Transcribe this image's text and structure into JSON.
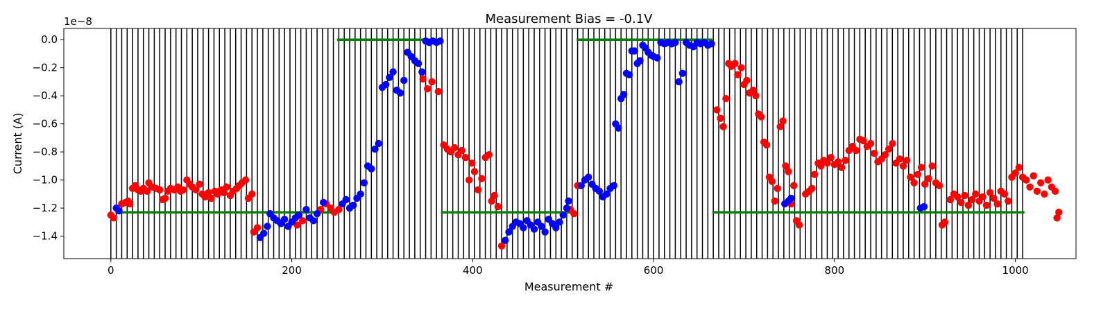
{
  "chart_data": {
    "type": "scatter",
    "title": "Measurement Bias = -0.1V",
    "xlabel": "Measurement #",
    "ylabel": "Current (A)",
    "y_offset_text": "1e−8",
    "y_scale_factor": 1e-08,
    "xlim": [
      -52,
      1067
    ],
    "ylim": [
      -1.56,
      0.08
    ],
    "x_ticks": [
      0,
      200,
      400,
      600,
      800,
      1000
    ],
    "x_tick_labels": [
      "0",
      "200",
      "400",
      "600",
      "800",
      "1000"
    ],
    "y_ticks": [
      0.0,
      -0.2,
      -0.4,
      -0.6,
      -0.8,
      -1.0,
      -1.2,
      -1.4
    ],
    "y_tick_labels": [
      "0.0",
      "−0.2",
      "−0.4",
      "−0.6",
      "−0.8",
      "−1.0",
      "−1.2",
      "−1.4"
    ],
    "grid": false,
    "colors": {
      "red": "#ff0000",
      "blue": "#0000ff",
      "green": "#007f00",
      "lines": "#000000"
    },
    "vertical_lines": {
      "start": 0,
      "end": 1010,
      "step": 6
    },
    "reference_lines": [
      {
        "x": [
          5,
          250
        ],
        "y": -1.23
      },
      {
        "x": [
          250,
          365
        ],
        "y": 0.0
      },
      {
        "x": [
          365,
          515
        ],
        "y": -1.23
      },
      {
        "x": [
          515,
          665
        ],
        "y": 0.0
      },
      {
        "x": [
          665,
          1010
        ],
        "y": -1.23
      }
    ],
    "series": [
      {
        "color": "red",
        "points": [
          [
            0,
            -1.25
          ],
          [
            3,
            -1.27
          ],
          [
            12,
            -1.17
          ],
          [
            16,
            -1.16
          ],
          [
            19,
            -1.15
          ],
          [
            21,
            -1.17
          ],
          [
            24,
            -1.06
          ],
          [
            27,
            -1.04
          ],
          [
            30,
            -1.07
          ],
          [
            33,
            -1.08
          ],
          [
            36,
            -1.06
          ],
          [
            40,
            -1.08
          ],
          [
            42,
            -1.02
          ],
          [
            46,
            -1.05
          ],
          [
            50,
            -1.06
          ],
          [
            54,
            -1.07
          ],
          [
            57,
            -1.14
          ],
          [
            60,
            -1.13
          ],
          [
            63,
            -1.08
          ],
          [
            66,
            -1.06
          ],
          [
            70,
            -1.07
          ],
          [
            74,
            -1.05
          ],
          [
            77,
            -1.08
          ],
          [
            80,
            -1.07
          ],
          [
            84,
            -1.0
          ],
          [
            87,
            -1.03
          ],
          [
            90,
            -1.05
          ],
          [
            94,
            -1.07
          ],
          [
            98,
            -1.03
          ],
          [
            101,
            -1.1
          ],
          [
            104,
            -1.12
          ],
          [
            108,
            -1.09
          ],
          [
            111,
            -1.13
          ],
          [
            115,
            -1.08
          ],
          [
            118,
            -1.1
          ],
          [
            122,
            -1.07
          ],
          [
            125,
            -1.09
          ],
          [
            128,
            -1.05
          ],
          [
            132,
            -1.11
          ],
          [
            135,
            -1.08
          ],
          [
            139,
            -1.06
          ],
          [
            142,
            -1.04
          ],
          [
            145,
            -1.02
          ],
          [
            149,
            -1.0
          ],
          [
            152,
            -1.13
          ],
          [
            156,
            -1.1
          ],
          [
            158,
            -1.37
          ],
          [
            162,
            -1.34
          ],
          [
            206,
            -1.32
          ],
          [
            212,
            -1.29
          ],
          [
            232,
            -1.21
          ],
          [
            238,
            -1.17
          ],
          [
            243,
            -1.2
          ],
          [
            247,
            -1.23
          ],
          [
            252,
            -1.21
          ],
          [
            345,
            -0.28
          ],
          [
            350,
            -0.35
          ],
          [
            355,
            -0.3
          ],
          [
            362,
            -0.37
          ],
          [
            368,
            -0.75
          ],
          [
            372,
            -0.78
          ],
          [
            376,
            -0.8
          ],
          [
            380,
            -0.77
          ],
          [
            384,
            -0.82
          ],
          [
            388,
            -0.79
          ],
          [
            392,
            -0.84
          ],
          [
            396,
            -1.0
          ],
          [
            399,
            -0.88
          ],
          [
            402,
            -0.94
          ],
          [
            406,
            -1.07
          ],
          [
            410,
            -0.99
          ],
          [
            414,
            -0.84
          ],
          [
            418,
            -0.82
          ],
          [
            421,
            -1.15
          ],
          [
            424,
            -1.11
          ],
          [
            428,
            -1.19
          ],
          [
            432,
            -1.47
          ],
          [
            508,
            -1.21
          ],
          [
            512,
            -1.24
          ],
          [
            516,
            -1.04
          ],
          [
            670,
            -0.5
          ],
          [
            674,
            -0.56
          ],
          [
            677,
            -0.62
          ],
          [
            680,
            -0.42
          ],
          [
            683,
            -0.17
          ],
          [
            686,
            -0.19
          ],
          [
            690,
            -0.17
          ],
          [
            693,
            -0.25
          ],
          [
            697,
            -0.2
          ],
          [
            700,
            -0.32
          ],
          [
            703,
            -0.29
          ],
          [
            706,
            -0.38
          ],
          [
            710,
            -0.36
          ],
          [
            713,
            -0.4
          ],
          [
            716,
            -0.53
          ],
          [
            719,
            -0.55
          ],
          [
            722,
            -0.73
          ],
          [
            725,
            -0.75
          ],
          [
            728,
            -0.98
          ],
          [
            731,
            -1.01
          ],
          [
            734,
            -1.15
          ],
          [
            737,
            -1.06
          ],
          [
            740,
            -0.62
          ],
          [
            743,
            -0.58
          ],
          [
            746,
            -0.9
          ],
          [
            749,
            -0.94
          ],
          [
            752,
            -1.17
          ],
          [
            755,
            -1.04
          ],
          [
            758,
            -1.29
          ],
          [
            761,
            -1.32
          ],
          [
            768,
            -1.1
          ],
          [
            772,
            -1.08
          ],
          [
            775,
            -1.06
          ],
          [
            778,
            -0.96
          ],
          [
            782,
            -0.88
          ],
          [
            785,
            -0.9
          ],
          [
            788,
            -0.86
          ],
          [
            792,
            -0.88
          ],
          [
            796,
            -0.84
          ],
          [
            800,
            -0.89
          ],
          [
            804,
            -0.87
          ],
          [
            808,
            -0.91
          ],
          [
            812,
            -0.86
          ],
          [
            816,
            -0.79
          ],
          [
            820,
            -0.76
          ],
          [
            824,
            -0.79
          ],
          [
            828,
            -0.71
          ],
          [
            832,
            -0.72
          ],
          [
            836,
            -0.76
          ],
          [
            840,
            -0.74
          ],
          [
            844,
            -0.81
          ],
          [
            848,
            -0.87
          ],
          [
            852,
            -0.85
          ],
          [
            856,
            -0.82
          ],
          [
            860,
            -0.78
          ],
          [
            864,
            -0.74
          ],
          [
            868,
            -0.88
          ],
          [
            872,
            -0.85
          ],
          [
            876,
            -0.9
          ],
          [
            880,
            -0.86
          ],
          [
            884,
            -0.98
          ],
          [
            888,
            -1.02
          ],
          [
            892,
            -0.96
          ],
          [
            896,
            -0.91
          ],
          [
            900,
            -1.03
          ],
          [
            904,
            -0.99
          ],
          [
            908,
            -0.9
          ],
          [
            912,
            -1.02
          ],
          [
            916,
            -1.04
          ],
          [
            919,
            -1.32
          ],
          [
            922,
            -1.3
          ],
          [
            928,
            -1.14
          ],
          [
            932,
            -1.1
          ],
          [
            936,
            -1.12
          ],
          [
            940,
            -1.16
          ],
          [
            944,
            -1.11
          ],
          [
            948,
            -1.18
          ],
          [
            952,
            -1.14
          ],
          [
            956,
            -1.1
          ],
          [
            960,
            -1.15
          ],
          [
            964,
            -1.12
          ],
          [
            968,
            -1.18
          ],
          [
            972,
            -1.09
          ],
          [
            976,
            -1.13
          ],
          [
            980,
            -1.17
          ],
          [
            984,
            -1.08
          ],
          [
            988,
            -1.1
          ],
          [
            992,
            -1.15
          ],
          [
            996,
            -0.98
          ],
          [
            1000,
            -0.95
          ],
          [
            1004,
            -0.91
          ],
          [
            1008,
            -0.98
          ],
          [
            1012,
            -1.0
          ],
          [
            1016,
            -1.05
          ],
          [
            1020,
            -0.97
          ],
          [
            1024,
            -1.08
          ],
          [
            1028,
            -1.02
          ],
          [
            1032,
            -1.1
          ],
          [
            1036,
            -1.0
          ],
          [
            1040,
            -1.05
          ],
          [
            1044,
            -1.08
          ],
          [
            1046,
            -1.27
          ],
          [
            1048,
            -1.23
          ]
        ]
      },
      {
        "color": "blue",
        "points": [
          [
            6,
            -1.2
          ],
          [
            9,
            -1.22
          ],
          [
            165,
            -1.41
          ],
          [
            169,
            -1.38
          ],
          [
            173,
            -1.33
          ],
          [
            176,
            -1.24
          ],
          [
            180,
            -1.27
          ],
          [
            184,
            -1.29
          ],
          [
            188,
            -1.31
          ],
          [
            192,
            -1.28
          ],
          [
            196,
            -1.33
          ],
          [
            200,
            -1.3
          ],
          [
            204,
            -1.27
          ],
          [
            208,
            -1.25
          ],
          [
            216,
            -1.21
          ],
          [
            220,
            -1.27
          ],
          [
            224,
            -1.29
          ],
          [
            228,
            -1.24
          ],
          [
            235,
            -1.16
          ],
          [
            256,
            -1.17
          ],
          [
            260,
            -1.14
          ],
          [
            264,
            -1.2
          ],
          [
            268,
            -1.18
          ],
          [
            272,
            -1.13
          ],
          [
            276,
            -1.1
          ],
          [
            280,
            -1.02
          ],
          [
            284,
            -0.9
          ],
          [
            288,
            -0.92
          ],
          [
            292,
            -0.78
          ],
          [
            296,
            -0.74
          ],
          [
            300,
            -0.34
          ],
          [
            304,
            -0.32
          ],
          [
            308,
            -0.27
          ],
          [
            312,
            -0.23
          ],
          [
            316,
            -0.36
          ],
          [
            320,
            -0.38
          ],
          [
            324,
            -0.29
          ],
          [
            328,
            -0.09
          ],
          [
            332,
            -0.12
          ],
          [
            336,
            -0.15
          ],
          [
            340,
            -0.17
          ],
          [
            344,
            -0.23
          ],
          [
            348,
            -0.01
          ],
          [
            352,
            -0.02
          ],
          [
            356,
            -0.01
          ],
          [
            360,
            -0.02
          ],
          [
            364,
            -0.01
          ],
          [
            436,
            -1.43
          ],
          [
            440,
            -1.37
          ],
          [
            444,
            -1.33
          ],
          [
            448,
            -1.3
          ],
          [
            452,
            -1.31
          ],
          [
            456,
            -1.34
          ],
          [
            460,
            -1.29
          ],
          [
            464,
            -1.32
          ],
          [
            468,
            -1.35
          ],
          [
            472,
            -1.3
          ],
          [
            476,
            -1.33
          ],
          [
            480,
            -1.37
          ],
          [
            484,
            -1.28
          ],
          [
            488,
            -1.31
          ],
          [
            492,
            -1.34
          ],
          [
            496,
            -1.3
          ],
          [
            500,
            -1.25
          ],
          [
            504,
            -1.2
          ],
          [
            506,
            -1.15
          ],
          [
            520,
            -1.04
          ],
          [
            524,
            -1.0
          ],
          [
            528,
            -0.98
          ],
          [
            532,
            -1.03
          ],
          [
            536,
            -1.06
          ],
          [
            540,
            -1.08
          ],
          [
            544,
            -1.12
          ],
          [
            548,
            -1.1
          ],
          [
            552,
            -1.06
          ],
          [
            556,
            -1.04
          ],
          [
            558,
            -0.6
          ],
          [
            561,
            -0.63
          ],
          [
            564,
            -0.42
          ],
          [
            567,
            -0.39
          ],
          [
            570,
            -0.24
          ],
          [
            573,
            -0.25
          ],
          [
            576,
            -0.08
          ],
          [
            579,
            -0.08
          ],
          [
            582,
            -0.17
          ],
          [
            585,
            -0.15
          ],
          [
            588,
            -0.04
          ],
          [
            591,
            -0.06
          ],
          [
            594,
            -0.09
          ],
          [
            597,
            -0.11
          ],
          [
            600,
            -0.12
          ],
          [
            604,
            -0.13
          ],
          [
            608,
            -0.02
          ],
          [
            612,
            -0.03
          ],
          [
            616,
            -0.02
          ],
          [
            620,
            -0.03
          ],
          [
            624,
            -0.02
          ],
          [
            628,
            -0.3
          ],
          [
            632,
            -0.24
          ],
          [
            636,
            -0.02
          ],
          [
            640,
            -0.04
          ],
          [
            644,
            -0.05
          ],
          [
            648,
            -0.02
          ],
          [
            652,
            -0.03
          ],
          [
            656,
            -0.02
          ],
          [
            660,
            -0.04
          ],
          [
            664,
            -0.03
          ],
          [
            745,
            -1.17
          ],
          [
            749,
            -1.15
          ],
          [
            752,
            -1.13
          ],
          [
            895,
            -1.2
          ],
          [
            899,
            -1.19
          ]
        ]
      }
    ]
  }
}
